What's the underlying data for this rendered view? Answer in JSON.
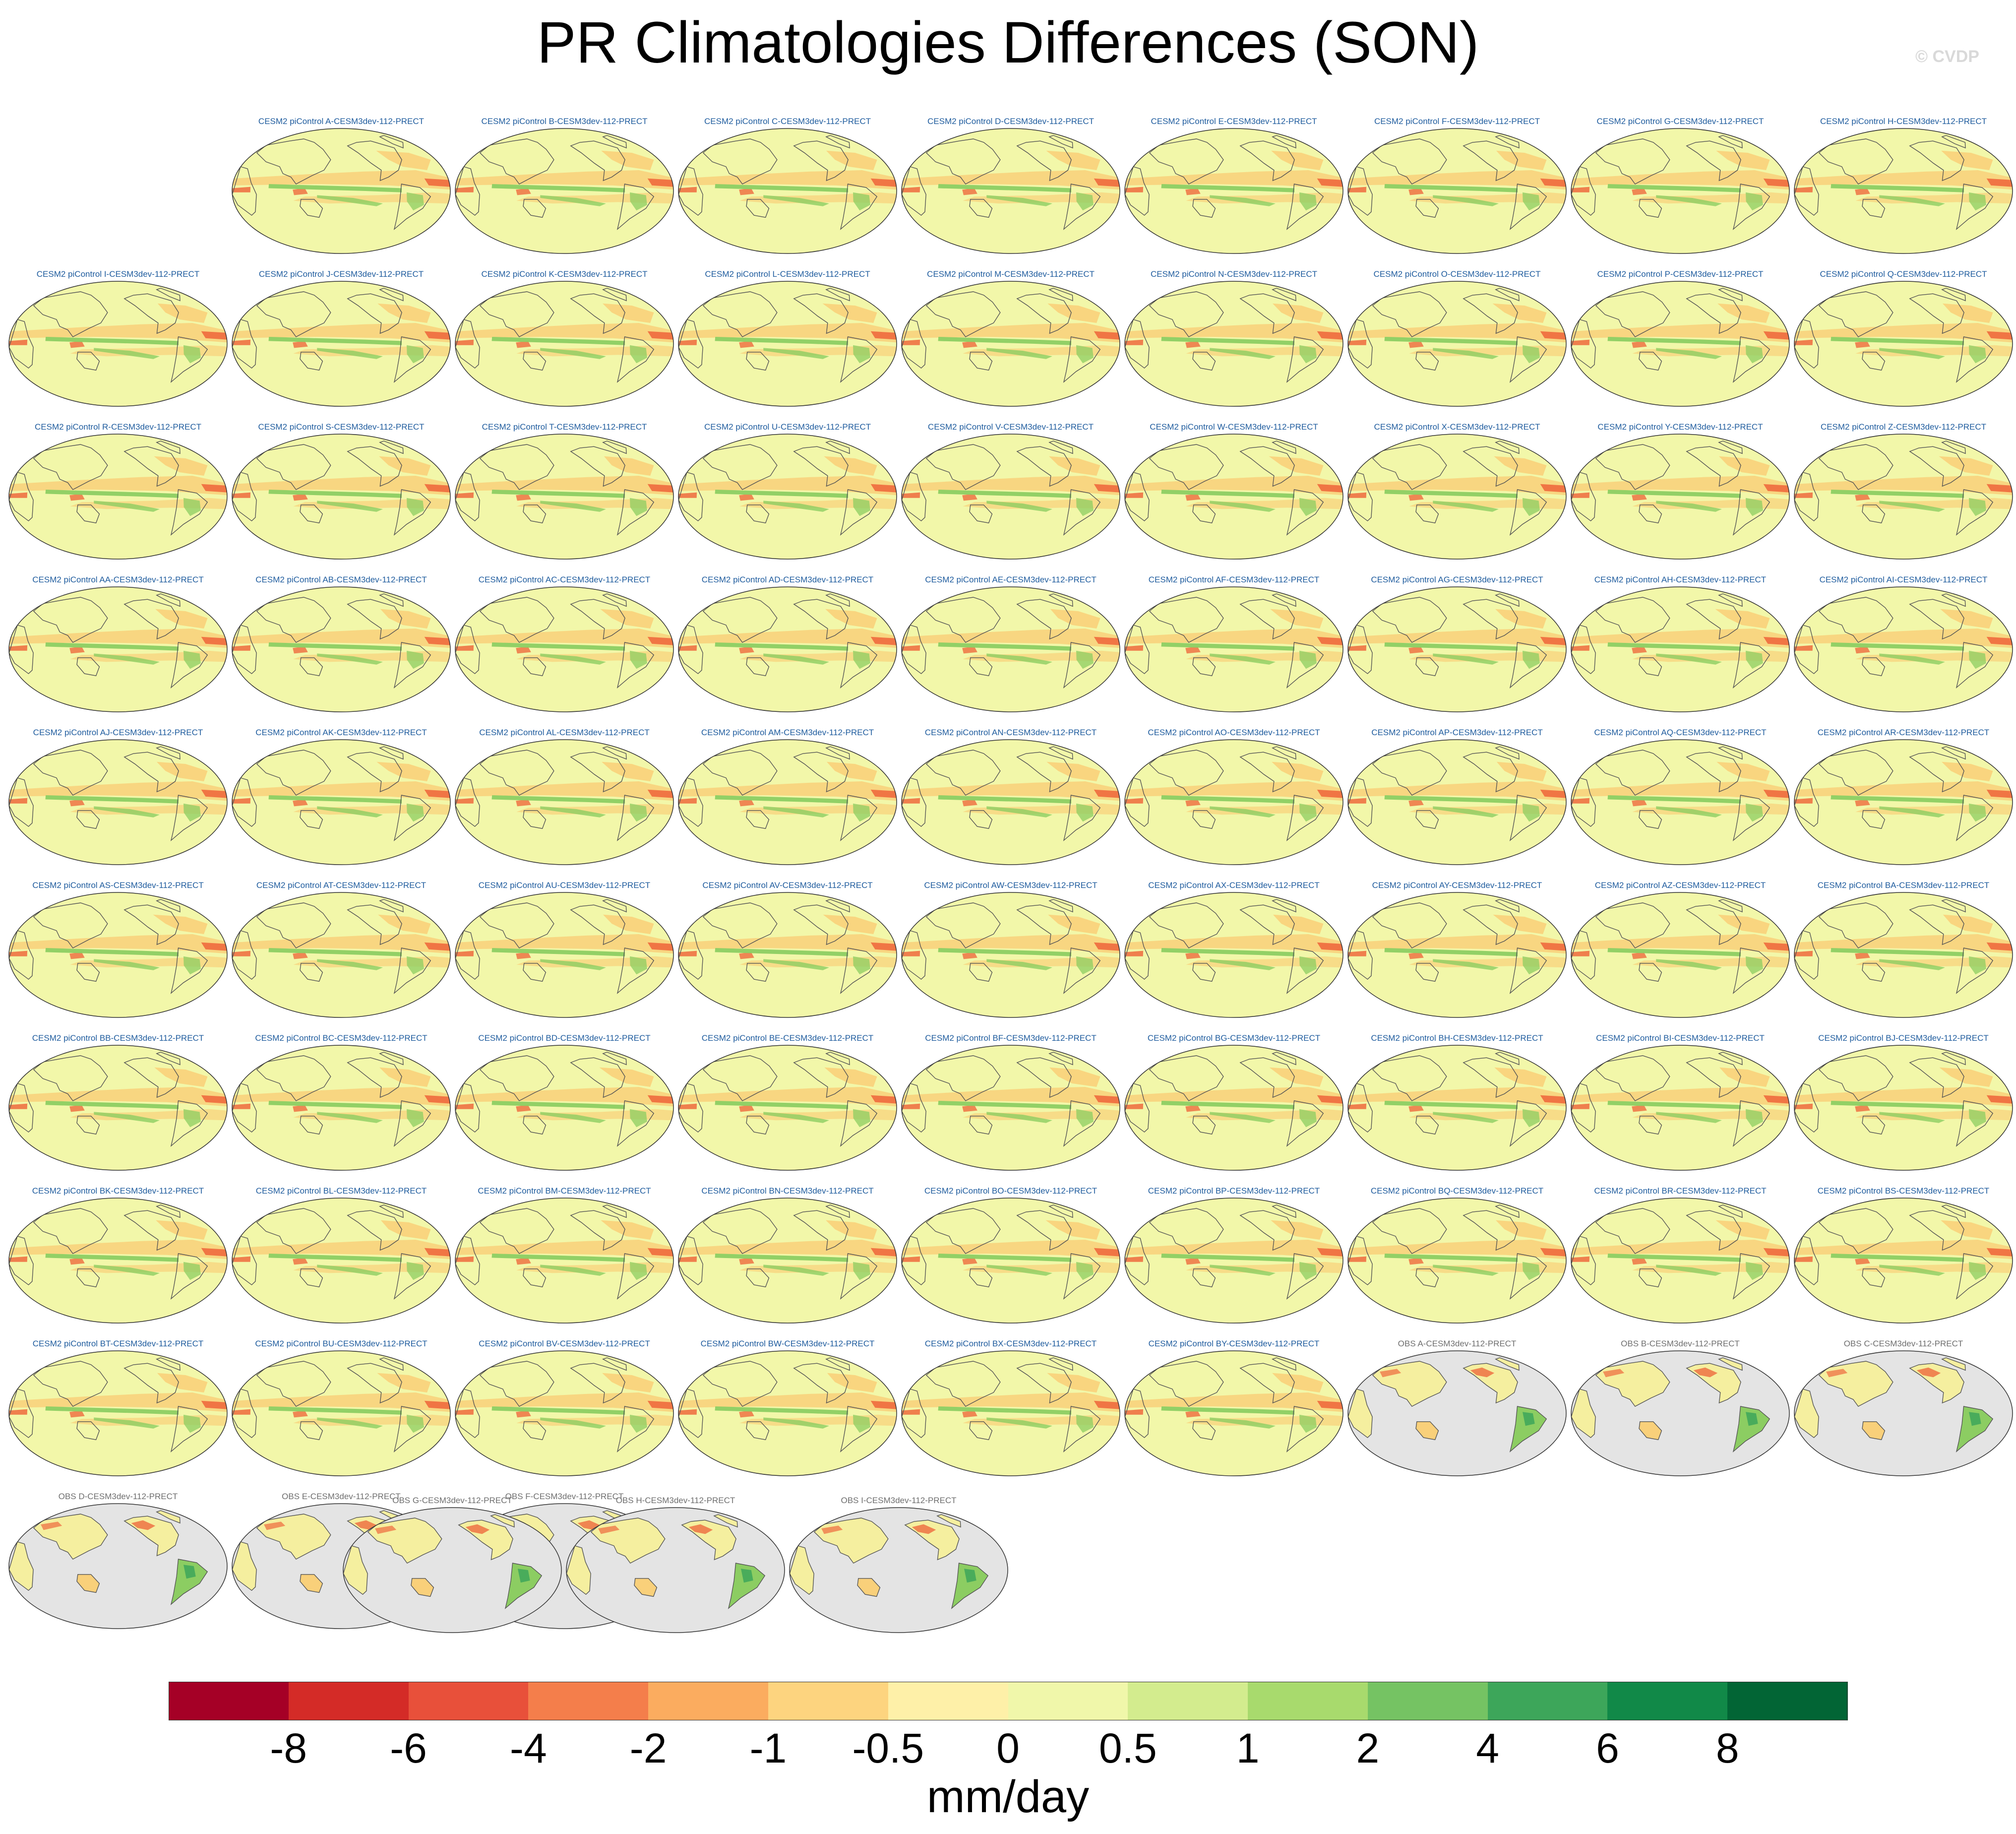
{
  "title": "PR Climatologies Differences (SON)",
  "copyright": "© CVDP",
  "chart_data": {
    "type": "map-panels",
    "variable": "PR",
    "season": "SON",
    "reference": "CESM3dev-112-PRECT",
    "panels": [
      {
        "label": "CESM2 piControl A-CESM3dev-112-PRECT",
        "kind": "model"
      },
      {
        "label": "CESM2 piControl B-CESM3dev-112-PRECT",
        "kind": "model"
      },
      {
        "label": "CESM2 piControl C-CESM3dev-112-PRECT",
        "kind": "model"
      },
      {
        "label": "CESM2 piControl D-CESM3dev-112-PRECT",
        "kind": "model"
      },
      {
        "label": "CESM2 piControl E-CESM3dev-112-PRECT",
        "kind": "model"
      },
      {
        "label": "CESM2 piControl F-CESM3dev-112-PRECT",
        "kind": "model"
      },
      {
        "label": "CESM2 piControl G-CESM3dev-112-PRECT",
        "kind": "model"
      },
      {
        "label": "CESM2 piControl H-CESM3dev-112-PRECT",
        "kind": "model"
      },
      {
        "label": "CESM2 piControl I-CESM3dev-112-PRECT",
        "kind": "model"
      },
      {
        "label": "CESM2 piControl J-CESM3dev-112-PRECT",
        "kind": "model"
      },
      {
        "label": "CESM2 piControl K-CESM3dev-112-PRECT",
        "kind": "model"
      },
      {
        "label": "CESM2 piControl L-CESM3dev-112-PRECT",
        "kind": "model"
      },
      {
        "label": "CESM2 piControl M-CESM3dev-112-PRECT",
        "kind": "model"
      },
      {
        "label": "CESM2 piControl N-CESM3dev-112-PRECT",
        "kind": "model"
      },
      {
        "label": "CESM2 piControl O-CESM3dev-112-PRECT",
        "kind": "model"
      },
      {
        "label": "CESM2 piControl P-CESM3dev-112-PRECT",
        "kind": "model"
      },
      {
        "label": "CESM2 piControl Q-CESM3dev-112-PRECT",
        "kind": "model"
      },
      {
        "label": "CESM2 piControl R-CESM3dev-112-PRECT",
        "kind": "model"
      },
      {
        "label": "CESM2 piControl S-CESM3dev-112-PRECT",
        "kind": "model"
      },
      {
        "label": "CESM2 piControl T-CESM3dev-112-PRECT",
        "kind": "model"
      },
      {
        "label": "CESM2 piControl U-CESM3dev-112-PRECT",
        "kind": "model"
      },
      {
        "label": "CESM2 piControl V-CESM3dev-112-PRECT",
        "kind": "model"
      },
      {
        "label": "CESM2 piControl W-CESM3dev-112-PRECT",
        "kind": "model"
      },
      {
        "label": "CESM2 piControl X-CESM3dev-112-PRECT",
        "kind": "model"
      },
      {
        "label": "CESM2 piControl Y-CESM3dev-112-PRECT",
        "kind": "model"
      },
      {
        "label": "CESM2 piControl Z-CESM3dev-112-PRECT",
        "kind": "model"
      },
      {
        "label": "CESM2 piControl AA-CESM3dev-112-PRECT",
        "kind": "model"
      },
      {
        "label": "CESM2 piControl AB-CESM3dev-112-PRECT",
        "kind": "model"
      },
      {
        "label": "CESM2 piControl AC-CESM3dev-112-PRECT",
        "kind": "model"
      },
      {
        "label": "CESM2 piControl AD-CESM3dev-112-PRECT",
        "kind": "model"
      },
      {
        "label": "CESM2 piControl AE-CESM3dev-112-PRECT",
        "kind": "model"
      },
      {
        "label": "CESM2 piControl AF-CESM3dev-112-PRECT",
        "kind": "model"
      },
      {
        "label": "CESM2 piControl AG-CESM3dev-112-PRECT",
        "kind": "model"
      },
      {
        "label": "CESM2 piControl AH-CESM3dev-112-PRECT",
        "kind": "model"
      },
      {
        "label": "CESM2 piControl AI-CESM3dev-112-PRECT",
        "kind": "model"
      },
      {
        "label": "CESM2 piControl AJ-CESM3dev-112-PRECT",
        "kind": "model"
      },
      {
        "label": "CESM2 piControl AK-CESM3dev-112-PRECT",
        "kind": "model"
      },
      {
        "label": "CESM2 piControl AL-CESM3dev-112-PRECT",
        "kind": "model"
      },
      {
        "label": "CESM2 piControl AM-CESM3dev-112-PRECT",
        "kind": "model"
      },
      {
        "label": "CESM2 piControl AN-CESM3dev-112-PRECT",
        "kind": "model"
      },
      {
        "label": "CESM2 piControl AO-CESM3dev-112-PRECT",
        "kind": "model"
      },
      {
        "label": "CESM2 piControl AP-CESM3dev-112-PRECT",
        "kind": "model"
      },
      {
        "label": "CESM2 piControl AQ-CESM3dev-112-PRECT",
        "kind": "model"
      },
      {
        "label": "CESM2 piControl AR-CESM3dev-112-PRECT",
        "kind": "model"
      },
      {
        "label": "CESM2 piControl AS-CESM3dev-112-PRECT",
        "kind": "model"
      },
      {
        "label": "CESM2 piControl AT-CESM3dev-112-PRECT",
        "kind": "model"
      },
      {
        "label": "CESM2 piControl AU-CESM3dev-112-PRECT",
        "kind": "model"
      },
      {
        "label": "CESM2 piControl AV-CESM3dev-112-PRECT",
        "kind": "model"
      },
      {
        "label": "CESM2 piControl AW-CESM3dev-112-PRECT",
        "kind": "model"
      },
      {
        "label": "CESM2 piControl AX-CESM3dev-112-PRECT",
        "kind": "model"
      },
      {
        "label": "CESM2 piControl AY-CESM3dev-112-PRECT",
        "kind": "model"
      },
      {
        "label": "CESM2 piControl AZ-CESM3dev-112-PRECT",
        "kind": "model"
      },
      {
        "label": "CESM2 piControl BA-CESM3dev-112-PRECT",
        "kind": "model"
      },
      {
        "label": "CESM2 piControl BB-CESM3dev-112-PRECT",
        "kind": "model"
      },
      {
        "label": "CESM2 piControl BC-CESM3dev-112-PRECT",
        "kind": "model"
      },
      {
        "label": "CESM2 piControl BD-CESM3dev-112-PRECT",
        "kind": "model"
      },
      {
        "label": "CESM2 piControl BE-CESM3dev-112-PRECT",
        "kind": "model"
      },
      {
        "label": "CESM2 piControl BF-CESM3dev-112-PRECT",
        "kind": "model"
      },
      {
        "label": "CESM2 piControl BG-CESM3dev-112-PRECT",
        "kind": "model"
      },
      {
        "label": "CESM2 piControl BH-CESM3dev-112-PRECT",
        "kind": "model"
      },
      {
        "label": "CESM2 piControl BI-CESM3dev-112-PRECT",
        "kind": "model"
      },
      {
        "label": "CESM2 piControl BJ-CESM3dev-112-PRECT",
        "kind": "model"
      },
      {
        "label": "CESM2 piControl BK-CESM3dev-112-PRECT",
        "kind": "model"
      },
      {
        "label": "CESM2 piControl BL-CESM3dev-112-PRECT",
        "kind": "model"
      },
      {
        "label": "CESM2 piControl BM-CESM3dev-112-PRECT",
        "kind": "model"
      },
      {
        "label": "CESM2 piControl BN-CESM3dev-112-PRECT",
        "kind": "model"
      },
      {
        "label": "CESM2 piControl BO-CESM3dev-112-PRECT",
        "kind": "model"
      },
      {
        "label": "CESM2 piControl BP-CESM3dev-112-PRECT",
        "kind": "model"
      },
      {
        "label": "CESM2 piControl BQ-CESM3dev-112-PRECT",
        "kind": "model"
      },
      {
        "label": "CESM2 piControl BR-CESM3dev-112-PRECT",
        "kind": "model"
      },
      {
        "label": "CESM2 piControl BS-CESM3dev-112-PRECT",
        "kind": "model"
      },
      {
        "label": "CESM2 piControl BT-CESM3dev-112-PRECT",
        "kind": "model"
      },
      {
        "label": "CESM2 piControl BU-CESM3dev-112-PRECT",
        "kind": "model"
      },
      {
        "label": "CESM2 piControl BV-CESM3dev-112-PRECT",
        "kind": "model"
      },
      {
        "label": "CESM2 piControl BW-CESM3dev-112-PRECT",
        "kind": "model"
      },
      {
        "label": "CESM2 piControl BX-CESM3dev-112-PRECT",
        "kind": "model"
      },
      {
        "label": "CESM2 piControl BY-CESM3dev-112-PRECT",
        "kind": "model"
      },
      {
        "label": "OBS A-CESM3dev-112-PRECT",
        "kind": "obs"
      },
      {
        "label": "OBS B-CESM3dev-112-PRECT",
        "kind": "obs"
      },
      {
        "label": "OBS C-CESM3dev-112-PRECT",
        "kind": "obs"
      },
      {
        "label": "OBS D-CESM3dev-112-PRECT",
        "kind": "obs"
      },
      {
        "label": "OBS E-CESM3dev-112-PRECT",
        "kind": "obs"
      },
      {
        "label": "OBS F-CESM3dev-112-PRECT",
        "kind": "obs"
      },
      {
        "label": "OBS G-CESM3dev-112-PRECT",
        "kind": "obs"
      },
      {
        "label": "OBS H-CESM3dev-112-PRECT",
        "kind": "obs"
      },
      {
        "label": "OBS I-CESM3dev-112-PRECT",
        "kind": "obs"
      }
    ],
    "colorbar": {
      "units": "mm/day",
      "tick_labels": [
        "-8",
        "-6",
        "-4",
        "-2",
        "-1",
        "-0.5",
        "0",
        "0.5",
        "1",
        "2",
        "4",
        "6",
        "8"
      ],
      "colors": [
        "#a50026",
        "#d42b27",
        "#e8503a",
        "#f47e4b",
        "#fbac5f",
        "#fdd47f",
        "#fef0a8",
        "#f0f7aa",
        "#d3ec8e",
        "#a8da6d",
        "#75c363",
        "#3da65a",
        "#118948",
        "#026535"
      ]
    },
    "map_colors": {
      "ocean": "#f2f7a9",
      "dry_band": "#f9d07a",
      "dry_core": "#ee6a3d",
      "wet_band": "#8ccd62",
      "coast": "#555555",
      "obs_missing": "#e4e4e4"
    }
  }
}
